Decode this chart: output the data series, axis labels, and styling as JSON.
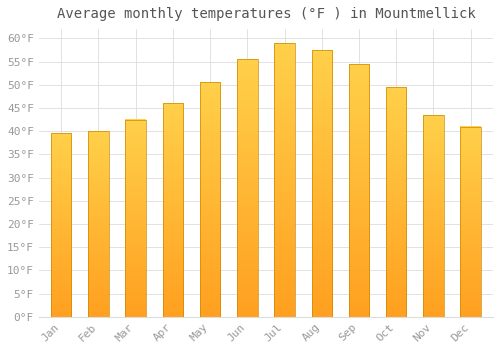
{
  "title": "Average monthly temperatures (°F ) in Mountmellick",
  "months": [
    "Jan",
    "Feb",
    "Mar",
    "Apr",
    "May",
    "Jun",
    "Jul",
    "Aug",
    "Sep",
    "Oct",
    "Nov",
    "Dec"
  ],
  "values": [
    39.5,
    40.0,
    42.5,
    46.0,
    50.5,
    55.5,
    59.0,
    57.5,
    54.5,
    49.5,
    43.5,
    41.0
  ],
  "bar_color_top": "#FFD04A",
  "bar_color_bottom": "#FFA020",
  "bar_edge_color": "#CC8800",
  "ylim": [
    0,
    62
  ],
  "yticks": [
    0,
    5,
    10,
    15,
    20,
    25,
    30,
    35,
    40,
    45,
    50,
    55,
    60
  ],
  "background_color": "#FFFFFF",
  "grid_color": "#DDDDDD",
  "title_fontsize": 10,
  "tick_fontsize": 8,
  "tick_color": "#999999",
  "title_color": "#555555",
  "font_family": "monospace",
  "bar_width": 0.55
}
